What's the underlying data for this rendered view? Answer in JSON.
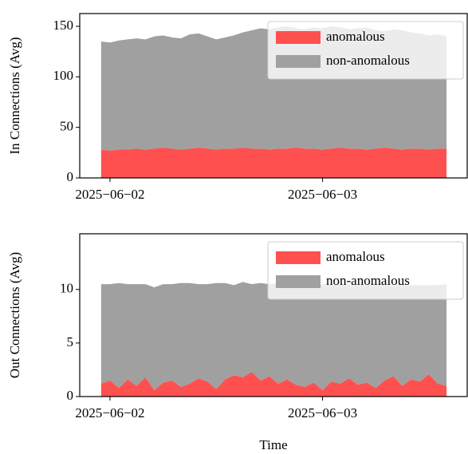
{
  "chart_data": [
    {
      "type": "area",
      "stacked": true,
      "ylabel": "In Connections (Avg)",
      "x": [
        "2025-06-01 23:00",
        "2025-06-02 00:00",
        "2025-06-02 01:00",
        "2025-06-02 02:00",
        "2025-06-02 03:00",
        "2025-06-02 04:00",
        "2025-06-02 05:00",
        "2025-06-02 06:00",
        "2025-06-02 07:00",
        "2025-06-02 08:00",
        "2025-06-02 09:00",
        "2025-06-02 10:00",
        "2025-06-02 11:00",
        "2025-06-02 12:00",
        "2025-06-02 13:00",
        "2025-06-02 14:00",
        "2025-06-02 15:00",
        "2025-06-02 16:00",
        "2025-06-02 17:00",
        "2025-06-02 18:00",
        "2025-06-02 19:00",
        "2025-06-02 20:00",
        "2025-06-02 21:00",
        "2025-06-02 22:00",
        "2025-06-02 23:00",
        "2025-06-03 00:00",
        "2025-06-03 01:00",
        "2025-06-03 02:00",
        "2025-06-03 03:00",
        "2025-06-03 04:00",
        "2025-06-03 05:00",
        "2025-06-03 06:00",
        "2025-06-03 07:00",
        "2025-06-03 08:00",
        "2025-06-03 09:00",
        "2025-06-03 10:00",
        "2025-06-03 11:00",
        "2025-06-03 12:00",
        "2025-06-03 13:00",
        "2025-06-03 14:00"
      ],
      "series": [
        {
          "name": "anomalous",
          "color": "#ff5050",
          "values": [
            28,
            27,
            28,
            28,
            29,
            28,
            29,
            30,
            29,
            28,
            29,
            30,
            29,
            28,
            29,
            29,
            30,
            29,
            29,
            28,
            29,
            29,
            30,
            29,
            29,
            28,
            29,
            30,
            29,
            29,
            28,
            29,
            30,
            29,
            28,
            29,
            29,
            28,
            29,
            29
          ]
        },
        {
          "name": "non-anomalous",
          "color": "#a0a0a0",
          "values": [
            107,
            107,
            108,
            109,
            109,
            109,
            111,
            111,
            110,
            110,
            113,
            113,
            111,
            109,
            110,
            112,
            114,
            117,
            119,
            119,
            120,
            121,
            118,
            118,
            120,
            120,
            121,
            119,
            118,
            119,
            121,
            117,
            115,
            118,
            118,
            115,
            114,
            113,
            113,
            111
          ]
        }
      ],
      "xlim": [
        "2025-06-01 20:35",
        "2025-06-03 16:20"
      ],
      "xticks": [
        {
          "value": "2025-06-02",
          "label": "2025−06−02"
        },
        {
          "value": "2025-06-03",
          "label": "2025−06−03"
        }
      ],
      "ylim": [
        0,
        162.6
      ],
      "yticks": [
        0,
        50,
        100,
        150
      ],
      "legend": "upper right"
    },
    {
      "type": "area",
      "stacked": true,
      "ylabel": "Out Connections (Avg)",
      "xlabel": "Time",
      "x": [
        "2025-06-01 23:00",
        "2025-06-02 00:00",
        "2025-06-02 01:00",
        "2025-06-02 02:00",
        "2025-06-02 03:00",
        "2025-06-02 04:00",
        "2025-06-02 05:00",
        "2025-06-02 06:00",
        "2025-06-02 07:00",
        "2025-06-02 08:00",
        "2025-06-02 09:00",
        "2025-06-02 10:00",
        "2025-06-02 11:00",
        "2025-06-02 12:00",
        "2025-06-02 13:00",
        "2025-06-02 14:00",
        "2025-06-02 15:00",
        "2025-06-02 16:00",
        "2025-06-02 17:00",
        "2025-06-02 18:00",
        "2025-06-02 19:00",
        "2025-06-02 20:00",
        "2025-06-02 21:00",
        "2025-06-02 22:00",
        "2025-06-02 23:00",
        "2025-06-03 00:00",
        "2025-06-03 01:00",
        "2025-06-03 02:00",
        "2025-06-03 03:00",
        "2025-06-03 04:00",
        "2025-06-03 05:00",
        "2025-06-03 06:00",
        "2025-06-03 07:00",
        "2025-06-03 08:00",
        "2025-06-03 09:00",
        "2025-06-03 10:00",
        "2025-06-03 11:00",
        "2025-06-03 12:00",
        "2025-06-03 13:00",
        "2025-06-03 14:00"
      ],
      "series": [
        {
          "name": "anomalous",
          "color": "#ff5050",
          "values": [
            1.2,
            1.5,
            0.8,
            1.6,
            1.0,
            1.8,
            0.6,
            1.3,
            1.5,
            0.9,
            1.2,
            1.7,
            1.4,
            0.7,
            1.6,
            2.0,
            1.8,
            2.3,
            1.5,
            1.9,
            1.2,
            1.6,
            1.1,
            0.9,
            1.3,
            0.6,
            1.4,
            1.2,
            1.7,
            1.1,
            1.3,
            0.8,
            1.5,
            1.9,
            1.0,
            1.6,
            1.4,
            2.1,
            1.2,
            1.0
          ]
        },
        {
          "name": "non-anomalous",
          "color": "#a0a0a0",
          "values": [
            9.3,
            9.0,
            9.8,
            8.9,
            9.5,
            8.7,
            9.6,
            9.2,
            9.0,
            9.7,
            9.4,
            8.8,
            9.1,
            9.9,
            9.0,
            8.4,
            8.9,
            8.2,
            9.1,
            8.6,
            9.4,
            8.9,
            9.5,
            9.8,
            9.2,
            9.9,
            9.0,
            9.3,
            8.8,
            9.4,
            9.1,
            9.8,
            8.9,
            8.5,
            9.5,
            8.8,
            9.0,
            8.3,
            9.2,
            9.5
          ]
        }
      ],
      "xlim": [
        "2025-06-01 20:35",
        "2025-06-03 16:20"
      ],
      "xticks": [
        {
          "value": "2025-06-02",
          "label": "2025−06−02"
        },
        {
          "value": "2025-06-03",
          "label": "2025−06−03"
        }
      ],
      "ylim": [
        0,
        15.2
      ],
      "yticks": [
        0,
        5,
        10
      ],
      "legend": "upper right"
    }
  ]
}
